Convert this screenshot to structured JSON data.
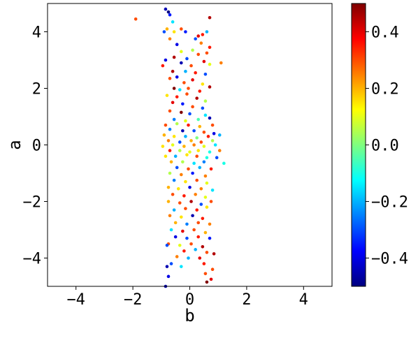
{
  "chart_data": {
    "type": "scatter",
    "title": "",
    "xlabel": "b",
    "ylabel": "a",
    "xlim": [
      -5,
      5
    ],
    "ylim": [
      -5,
      5
    ],
    "x_ticks": [
      -4,
      -2,
      0,
      2,
      4
    ],
    "y_ticks": [
      -4,
      -2,
      0,
      2,
      4
    ],
    "x_tick_labels": [
      "−4",
      "−2",
      "0",
      "2",
      "4"
    ],
    "y_tick_labels": [
      "−4",
      "−2",
      "0",
      "2",
      "4"
    ],
    "grid": false,
    "colormap": "jet",
    "colorbar": {
      "range": [
        -0.5,
        0.5
      ],
      "ticks": [
        -0.4,
        -0.2,
        0.0,
        0.2,
        0.4
      ],
      "tick_labels": [
        "−0.4",
        "−0.2",
        "0.0",
        "0.2",
        "0.4"
      ],
      "colors": [
        "#00007f",
        "#0000ff",
        "#007fff",
        "#00ffff",
        "#7fff7f",
        "#ffff00",
        "#ff7f00",
        "#ff0000",
        "#7f0000"
      ]
    },
    "points": [
      [
        -0.85,
        4.8,
        -0.45
      ],
      [
        -0.75,
        4.7,
        -0.5
      ],
      [
        -0.7,
        4.6,
        -0.35
      ],
      [
        -1.9,
        4.45,
        0.3
      ],
      [
        -0.6,
        4.35,
        -0.15
      ],
      [
        0.7,
        4.5,
        0.45
      ],
      [
        -0.9,
        4.0,
        -0.3
      ],
      [
        -0.8,
        4.1,
        0.2
      ],
      [
        -0.55,
        4.0,
        0.15
      ],
      [
        -0.3,
        4.1,
        0.3
      ],
      [
        -0.15,
        4.0,
        -0.35
      ],
      [
        0.3,
        3.85,
        0.4
      ],
      [
        0.45,
        3.9,
        0.35
      ],
      [
        0.6,
        4.0,
        -0.2
      ],
      [
        -0.7,
        3.75,
        0.25
      ],
      [
        -0.45,
        3.55,
        -0.4
      ],
      [
        0.2,
        3.75,
        -0.3
      ],
      [
        0.4,
        3.6,
        0.25
      ],
      [
        0.7,
        3.45,
        0.35
      ],
      [
        0.1,
        3.35,
        0.05
      ],
      [
        -0.3,
        3.3,
        0.1
      ],
      [
        -0.85,
        3.0,
        -0.4
      ],
      [
        -0.55,
        3.1,
        0.45
      ],
      [
        -0.1,
        3.05,
        -0.3
      ],
      [
        0.3,
        3.2,
        0.3
      ],
      [
        0.6,
        3.25,
        0.3
      ],
      [
        -0.95,
        2.8,
        0.35
      ],
      [
        -0.3,
        2.9,
        -0.45
      ],
      [
        0.05,
        2.8,
        0.3
      ],
      [
        0.5,
        2.95,
        0.4
      ],
      [
        0.7,
        2.85,
        0.1
      ],
      [
        1.1,
        2.9,
        0.25
      ],
      [
        -0.6,
        2.6,
        0.45
      ],
      [
        -0.15,
        2.6,
        -0.2
      ],
      [
        0.2,
        2.55,
        0.35
      ],
      [
        0.55,
        2.5,
        -0.3
      ],
      [
        -0.7,
        2.35,
        0.3
      ],
      [
        -0.45,
        2.4,
        -0.4
      ],
      [
        0.1,
        2.3,
        0.4
      ],
      [
        0.45,
        2.15,
        0.15
      ],
      [
        -0.2,
        2.2,
        0.3
      ],
      [
        -0.55,
        2.0,
        0.5
      ],
      [
        -0.35,
        1.95,
        -0.15
      ],
      [
        -0.05,
        2.0,
        0.3
      ],
      [
        0.35,
        1.9,
        0.35
      ],
      [
        0.7,
        2.05,
        0.45
      ],
      [
        -0.8,
        1.75,
        0.15
      ],
      [
        -0.45,
        1.7,
        0.35
      ],
      [
        -0.1,
        1.8,
        0.3
      ],
      [
        0.25,
        1.65,
        0.45
      ],
      [
        0.55,
        1.55,
        0.05
      ],
      [
        -0.6,
        1.5,
        0.4
      ],
      [
        -0.25,
        1.45,
        -0.35
      ],
      [
        0.1,
        1.35,
        0.3
      ],
      [
        0.45,
        1.3,
        -0.3
      ],
      [
        -0.7,
        1.2,
        0.3
      ],
      [
        -0.3,
        1.15,
        0.5
      ],
      [
        0.0,
        1.1,
        -0.3
      ],
      [
        0.55,
        1.05,
        -0.15
      ],
      [
        -0.55,
        0.9,
        -0.25
      ],
      [
        -0.15,
        0.85,
        0.1
      ],
      [
        0.3,
        0.9,
        -0.05
      ],
      [
        0.7,
        0.95,
        -0.45
      ],
      [
        -0.85,
        0.7,
        0.3
      ],
      [
        -0.45,
        0.75,
        0.05
      ],
      [
        -0.05,
        0.7,
        0.35
      ],
      [
        0.35,
        0.65,
        0.2
      ],
      [
        0.8,
        0.7,
        0.3
      ],
      [
        -0.7,
        0.55,
        -0.25
      ],
      [
        -0.25,
        0.5,
        -0.45
      ],
      [
        0.15,
        0.5,
        -0.3
      ],
      [
        0.5,
        0.45,
        0.3
      ],
      [
        0.85,
        0.4,
        -0.4
      ],
      [
        1.05,
        0.35,
        -0.2
      ],
      [
        -0.9,
        0.35,
        0.2
      ],
      [
        -0.55,
        0.3,
        0.15
      ],
      [
        -0.15,
        0.3,
        -0.2
      ],
      [
        0.25,
        0.25,
        0.0
      ],
      [
        0.65,
        0.3,
        0.35
      ],
      [
        -0.75,
        0.15,
        0.25
      ],
      [
        -0.35,
        0.1,
        -0.3
      ],
      [
        0.05,
        0.15,
        0.2
      ],
      [
        0.4,
        0.1,
        0.3
      ],
      [
        0.8,
        0.15,
        0.05
      ],
      [
        -0.95,
        -0.05,
        0.15
      ],
      [
        -0.6,
        0.0,
        0.1
      ],
      [
        -0.2,
        -0.05,
        0.2
      ],
      [
        0.15,
        0.0,
        0.25
      ],
      [
        0.5,
        -0.05,
        0.1
      ],
      [
        0.9,
        0.0,
        -0.15
      ],
      [
        -0.7,
        -0.2,
        0.35
      ],
      [
        -0.35,
        -0.2,
        0.05
      ],
      [
        0.0,
        -0.25,
        0.1
      ],
      [
        0.3,
        -0.2,
        0.15
      ],
      [
        0.7,
        -0.25,
        -0.1
      ],
      [
        1.05,
        -0.2,
        0.25
      ],
      [
        -0.85,
        -0.4,
        0.15
      ],
      [
        -0.5,
        -0.4,
        -0.2
      ],
      [
        -0.1,
        -0.35,
        0.15
      ],
      [
        0.25,
        -0.4,
        0.3
      ],
      [
        0.6,
        -0.45,
        -0.1
      ],
      [
        0.95,
        -0.45,
        -0.3
      ],
      [
        -0.65,
        -0.6,
        0.2
      ],
      [
        -0.25,
        -0.6,
        0.05
      ],
      [
        0.15,
        -0.65,
        -0.15
      ],
      [
        0.5,
        -0.6,
        -0.25
      ],
      [
        1.2,
        -0.65,
        -0.1
      ],
      [
        -0.45,
        -0.8,
        -0.3
      ],
      [
        -0.05,
        -0.85,
        0.3
      ],
      [
        0.35,
        -0.8,
        -0.2
      ],
      [
        0.75,
        -0.85,
        0.35
      ],
      [
        -0.7,
        -1.0,
        0.05
      ],
      [
        -0.3,
        -1.05,
        0.25
      ],
      [
        0.1,
        -1.0,
        -0.35
      ],
      [
        0.55,
        -1.1,
        0.25
      ],
      [
        -0.55,
        -1.25,
        -0.25
      ],
      [
        -0.15,
        -1.3,
        0.15
      ],
      [
        0.25,
        -1.25,
        0.3
      ],
      [
        0.6,
        -1.35,
        0.1
      ],
      [
        -0.75,
        -1.5,
        0.2
      ],
      [
        -0.4,
        -1.55,
        0.15
      ],
      [
        0.0,
        -1.5,
        -0.4
      ],
      [
        0.4,
        -1.55,
        0.25
      ],
      [
        0.8,
        -1.6,
        -0.15
      ],
      [
        -0.6,
        -1.75,
        0.3
      ],
      [
        -0.2,
        -1.8,
        0.35
      ],
      [
        0.2,
        -1.75,
        0.25
      ],
      [
        0.55,
        -1.85,
        0.1
      ],
      [
        -0.75,
        -2.0,
        0.2
      ],
      [
        -0.35,
        -2.05,
        0.3
      ],
      [
        0.05,
        -2.0,
        0.45
      ],
      [
        0.4,
        -2.1,
        -0.3
      ],
      [
        0.75,
        -2.0,
        0.3
      ],
      [
        -0.55,
        -2.3,
        -0.2
      ],
      [
        -0.15,
        -2.25,
        0.3
      ],
      [
        0.25,
        -2.3,
        0.35
      ],
      [
        0.6,
        -2.2,
        0.15
      ],
      [
        -0.7,
        -2.5,
        0.25
      ],
      [
        -0.3,
        -2.55,
        0.15
      ],
      [
        0.1,
        -2.5,
        -0.45
      ],
      [
        0.45,
        -2.6,
        0.35
      ],
      [
        -0.5,
        -2.75,
        0.2
      ],
      [
        -0.1,
        -2.8,
        -0.25
      ],
      [
        0.3,
        -2.75,
        0.3
      ],
      [
        0.7,
        -2.8,
        0.25
      ],
      [
        -0.65,
        -3.0,
        -0.15
      ],
      [
        -0.25,
        -3.05,
        0.4
      ],
      [
        0.15,
        -3.0,
        0.3
      ],
      [
        0.55,
        -3.1,
        0.2
      ],
      [
        -0.5,
        -3.25,
        -0.4
      ],
      [
        -0.1,
        -3.3,
        -0.3
      ],
      [
        0.3,
        -3.25,
        0.35
      ],
      [
        0.7,
        -3.3,
        -0.35
      ],
      [
        -0.75,
        -3.5,
        0.3
      ],
      [
        -0.35,
        -3.55,
        0.1
      ],
      [
        0.05,
        -3.5,
        0.3
      ],
      [
        0.45,
        -3.6,
        0.45
      ],
      [
        -0.8,
        -3.55,
        -0.3
      ],
      [
        -0.2,
        -3.75,
        0.35
      ],
      [
        0.2,
        -3.7,
        -0.2
      ],
      [
        0.6,
        -3.8,
        0.3
      ],
      [
        0.85,
        -3.85,
        0.45
      ],
      [
        -0.45,
        -3.95,
        0.25
      ],
      [
        -0.05,
        -4.0,
        -0.2
      ],
      [
        0.35,
        -4.0,
        0.4
      ],
      [
        -0.8,
        -4.3,
        -0.45
      ],
      [
        -0.65,
        -4.2,
        -0.3
      ],
      [
        -0.3,
        -4.3,
        -0.15
      ],
      [
        0.5,
        -4.2,
        0.35
      ],
      [
        0.8,
        -4.4,
        0.3
      ],
      [
        -0.75,
        -4.65,
        -0.4
      ],
      [
        0.55,
        -4.55,
        0.3
      ],
      [
        0.75,
        -4.75,
        0.4
      ],
      [
        0.6,
        -4.85,
        0.5
      ],
      [
        -0.85,
        -5.0,
        -0.45
      ]
    ]
  }
}
